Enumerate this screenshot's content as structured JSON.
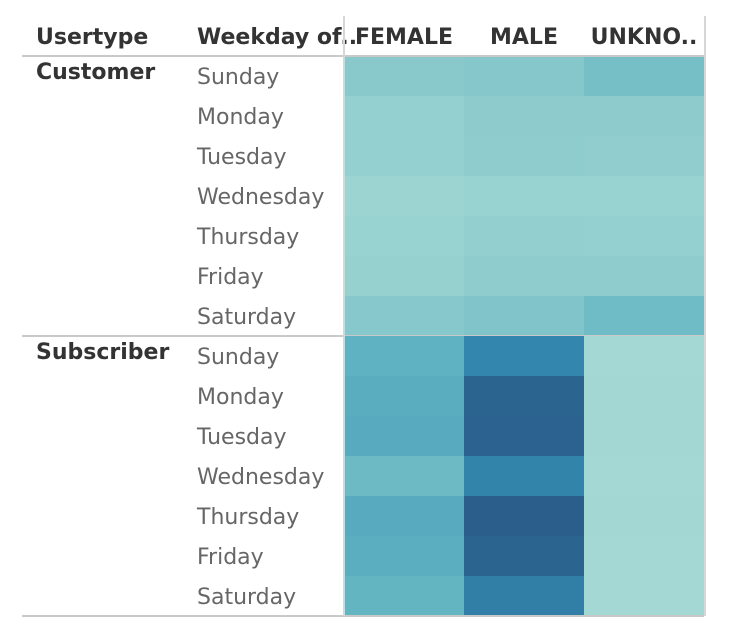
{
  "chart_data": {
    "type": "heatmap",
    "headers": {
      "usertype": "Usertype",
      "weekday": "Weekday of..",
      "columns": [
        "FEMALE",
        "MALE",
        "UNKNO.."
      ]
    },
    "groups": [
      {
        "name": "Customer",
        "rows": [
          "Sunday",
          "Monday",
          "Tuesday",
          "Wednesday",
          "Thursday",
          "Friday",
          "Saturday"
        ],
        "values": [
          [
            0.3,
            0.32,
            0.4
          ],
          [
            0.24,
            0.28,
            0.28
          ],
          [
            0.24,
            0.27,
            0.26
          ],
          [
            0.2,
            0.22,
            0.22
          ],
          [
            0.22,
            0.25,
            0.24
          ],
          [
            0.23,
            0.27,
            0.27
          ],
          [
            0.31,
            0.34,
            0.43
          ]
        ]
      },
      {
        "name": "Subscriber",
        "rows": [
          "Sunday",
          "Monday",
          "Tuesday",
          "Wednesday",
          "Thursday",
          "Friday",
          "Saturday"
        ],
        "values": [
          [
            0.52,
            0.78,
            0.16
          ],
          [
            0.55,
            0.95,
            0.17
          ],
          [
            0.56,
            0.96,
            0.17
          ],
          [
            0.45,
            0.79,
            0.16
          ],
          [
            0.56,
            0.98,
            0.17
          ],
          [
            0.54,
            0.95,
            0.16
          ],
          [
            0.5,
            0.82,
            0.16
          ]
        ]
      }
    ],
    "color_scale": {
      "low": "#c2e8dc",
      "mid": "#63b5c2",
      "high": "#2a5a88"
    }
  }
}
